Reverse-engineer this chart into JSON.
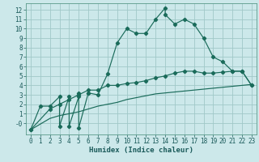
{
  "xlabel": "Humidex (Indice chaleur)",
  "bg_color": "#cce8ea",
  "grid_color": "#a0c8c8",
  "line_color": "#1a6b5a",
  "xlim": [
    -0.5,
    23.5
  ],
  "ylim": [
    -1.2,
    12.7
  ],
  "xticks": [
    0,
    1,
    2,
    3,
    4,
    5,
    6,
    7,
    8,
    9,
    10,
    11,
    12,
    13,
    14,
    15,
    16,
    17,
    18,
    19,
    20,
    21,
    22,
    23
  ],
  "yticks": [
    0,
    1,
    2,
    3,
    4,
    5,
    6,
    7,
    8,
    9,
    10,
    11,
    12
  ],
  "ytick_labels": [
    "-0",
    "1",
    "2",
    "3",
    "4",
    "5",
    "6",
    "7",
    "8",
    "9",
    "10",
    "11",
    "12"
  ],
  "line1_x": [
    0,
    1,
    2,
    3,
    3,
    4,
    4,
    5,
    5,
    5,
    6,
    6,
    7,
    8,
    9,
    10,
    11,
    12,
    13,
    14,
    14,
    15,
    16,
    17,
    18,
    19,
    20,
    21,
    22,
    23
  ],
  "line1_y": [
    -0.7,
    1.8,
    1.8,
    2.8,
    -0.3,
    2.8,
    -0.3,
    2.8,
    3.2,
    -0.5,
    3.2,
    3.2,
    3.0,
    5.2,
    8.5,
    10.0,
    9.5,
    9.5,
    11.0,
    12.2,
    11.5,
    10.5,
    11.0,
    10.5,
    9.0,
    7.0,
    6.5,
    5.5,
    5.5,
    4.0
  ],
  "line2_x": [
    0,
    2,
    3,
    4,
    5,
    6,
    7,
    8,
    9,
    10,
    11,
    12,
    13,
    14,
    15,
    16,
    17,
    18,
    19,
    20,
    21,
    22,
    23
  ],
  "line2_y": [
    -0.7,
    1.5,
    2.0,
    2.5,
    3.0,
    3.5,
    3.5,
    4.0,
    4.0,
    4.2,
    4.3,
    4.5,
    4.8,
    5.0,
    5.3,
    5.5,
    5.5,
    5.3,
    5.3,
    5.4,
    5.5,
    5.5,
    4.0
  ],
  "line3_x": [
    0,
    2,
    3,
    4,
    5,
    6,
    7,
    8,
    9,
    10,
    11,
    12,
    13,
    14,
    15,
    16,
    17,
    18,
    19,
    20,
    21,
    22,
    23
  ],
  "line3_y": [
    -0.7,
    0.5,
    0.8,
    1.0,
    1.2,
    1.5,
    1.8,
    2.0,
    2.2,
    2.5,
    2.7,
    2.9,
    3.1,
    3.2,
    3.3,
    3.4,
    3.5,
    3.6,
    3.7,
    3.8,
    3.9,
    4.0,
    4.1
  ]
}
